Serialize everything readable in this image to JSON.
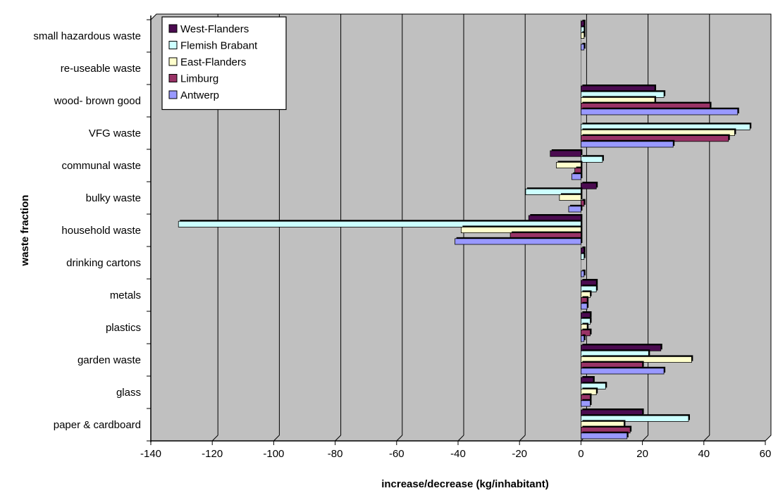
{
  "chart_data": {
    "type": "bar",
    "orientation": "horizontal",
    "title": "",
    "xlabel": "increase/decrease (kg/inhabitant)",
    "ylabel": "waste fraction",
    "xlim": [
      -140,
      60
    ],
    "xticks": [
      -140,
      -120,
      -100,
      -80,
      -60,
      -40,
      -20,
      0,
      20,
      40,
      60
    ],
    "grid": "vertical",
    "legend_position": "top-left",
    "categories": [
      "small hazardous waste",
      "re-useable waste",
      "wood- brown good",
      "VFG waste",
      "communal waste",
      "bulky waste",
      "household waste",
      "drinking cartons",
      "metals",
      "plastics",
      "garden waste",
      "glass",
      "paper & cardboard"
    ],
    "series": [
      {
        "name": "West-Flanders",
        "color": "#4b0b50",
        "values": [
          1,
          0,
          24,
          0,
          -10,
          5,
          -17,
          1,
          5,
          3,
          26,
          4,
          20
        ]
      },
      {
        "name": "Flemish Brabant",
        "color": "#ccffff",
        "values": [
          1,
          0,
          27,
          55,
          7,
          -18,
          -131,
          1,
          5,
          3,
          22,
          8,
          35
        ]
      },
      {
        "name": "East-Flanders",
        "color": "#ffffcc",
        "values": [
          1,
          0,
          24,
          50,
          -8,
          -7,
          -39,
          0,
          3,
          2,
          36,
          5,
          14
        ]
      },
      {
        "name": "Limburg",
        "color": "#993366",
        "values": [
          0,
          0,
          42,
          48,
          -2,
          1,
          -23,
          0,
          2,
          3,
          20,
          3,
          16
        ]
      },
      {
        "name": "Antwerp",
        "color": "#9999ff",
        "values": [
          1,
          0,
          51,
          30,
          -3,
          -4,
          -41,
          1,
          2,
          1,
          27,
          3,
          15
        ]
      }
    ]
  }
}
